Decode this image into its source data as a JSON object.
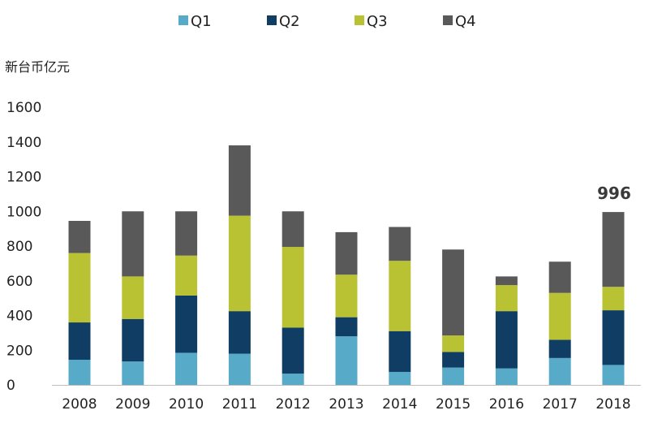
{
  "colors": {
    "Q1": "#57aac8",
    "Q2": "#0f3d63",
    "Q3": "#b8c233",
    "Q4": "#595959",
    "text": "#222222",
    "axis_line": "#bfbfbf"
  },
  "chart_data": {
    "type": "bar",
    "stacked": true,
    "ylabel": "新台币亿元",
    "ylim": [
      0,
      1600
    ],
    "yticks": [
      0,
      200,
      400,
      600,
      800,
      1000,
      1200,
      1400,
      1600
    ],
    "grid": false,
    "legend_position": "top-center",
    "categories": [
      "2008",
      "2009",
      "2010",
      "2011",
      "2012",
      "2013",
      "2014",
      "2015",
      "2016",
      "2017",
      "2018"
    ],
    "series": [
      {
        "name": "Q1",
        "values": [
          145,
          135,
          185,
          180,
          65,
          280,
          75,
          100,
          95,
          155,
          115
        ]
      },
      {
        "name": "Q2",
        "values": [
          215,
          245,
          330,
          245,
          265,
          110,
          235,
          90,
          330,
          105,
          315
        ]
      },
      {
        "name": "Q3",
        "values": [
          400,
          245,
          230,
          550,
          465,
          245,
          405,
          95,
          150,
          270,
          135
        ]
      },
      {
        "name": "Q4",
        "values": [
          185,
          375,
          255,
          405,
          205,
          245,
          195,
          495,
          50,
          180,
          431
        ]
      }
    ],
    "annotations": [
      {
        "category": "2018",
        "text": "996"
      }
    ]
  }
}
